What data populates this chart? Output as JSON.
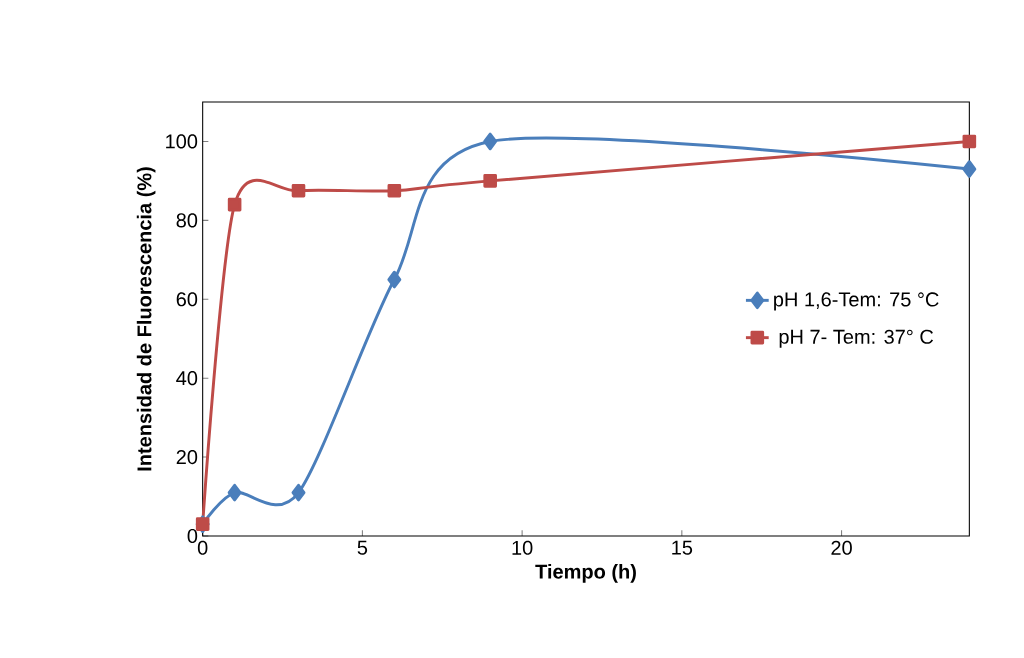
{
  "chart_data": {
    "type": "line",
    "xlabel": "Tiempo (h)",
    "ylabel": "Intensidad de Fluorescencia (%)",
    "xlim": [
      0,
      24
    ],
    "xticks": [
      0,
      5,
      10,
      15,
      20
    ],
    "ylim": [
      0,
      110
    ],
    "yticks": [
      0,
      20,
      40,
      60,
      80,
      100
    ],
    "grid": false,
    "legend": "right",
    "line_style": "solid",
    "series": [
      {
        "name": "pH 1,6-Tem: 75 °C",
        "color": "#4a7ebb",
        "marker": "diamond",
        "x": [
          0,
          1,
          3,
          6,
          9,
          24
        ],
        "values": [
          3,
          11,
          11,
          65,
          100,
          93
        ]
      },
      {
        "name": "pH 7- Tem: 37° C",
        "color": "#be4b48",
        "marker": "square",
        "x": [
          0,
          1,
          3,
          6,
          9,
          24
        ],
        "values": [
          3,
          84,
          87.5,
          87.5,
          90,
          100
        ]
      }
    ]
  }
}
